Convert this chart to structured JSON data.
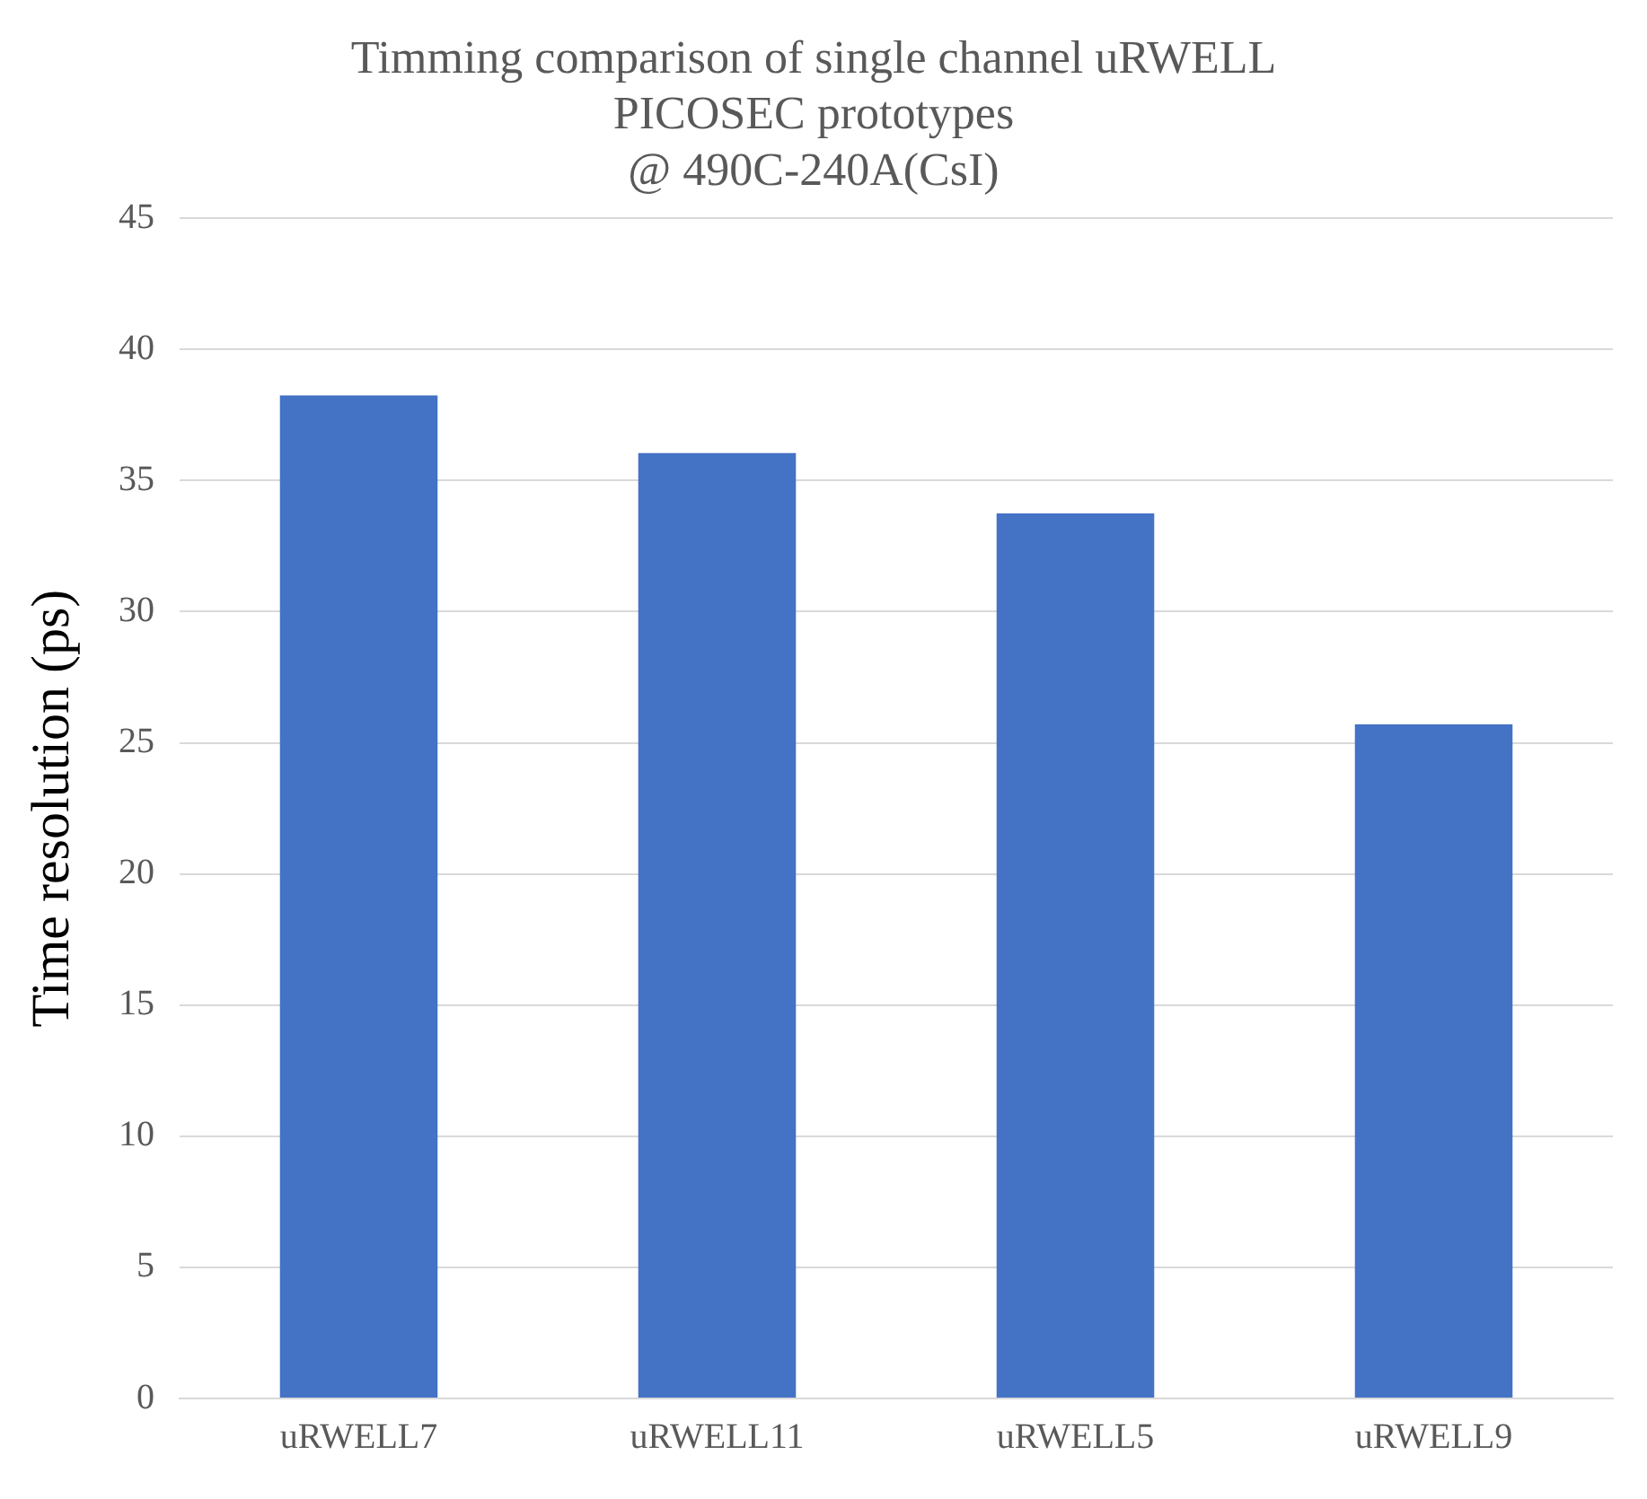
{
  "chart_data": {
    "type": "bar",
    "title": "Timming comparison of single channel uRWELL\nPICOSEC prototypes\n@ 490C-240A(CsI)",
    "ylabel": "Time resolution (ps)",
    "categories": [
      "uRWELL7",
      "uRWELL11",
      "uRWELL5",
      "uRWELL9"
    ],
    "values": [
      38.25,
      36.05,
      33.75,
      25.7
    ],
    "color": "#4472c4",
    "ylim": [
      0,
      45
    ],
    "yticks": [
      0,
      5,
      10,
      15,
      20,
      25,
      30,
      35,
      40,
      45
    ],
    "grid": "y",
    "legend": false
  }
}
